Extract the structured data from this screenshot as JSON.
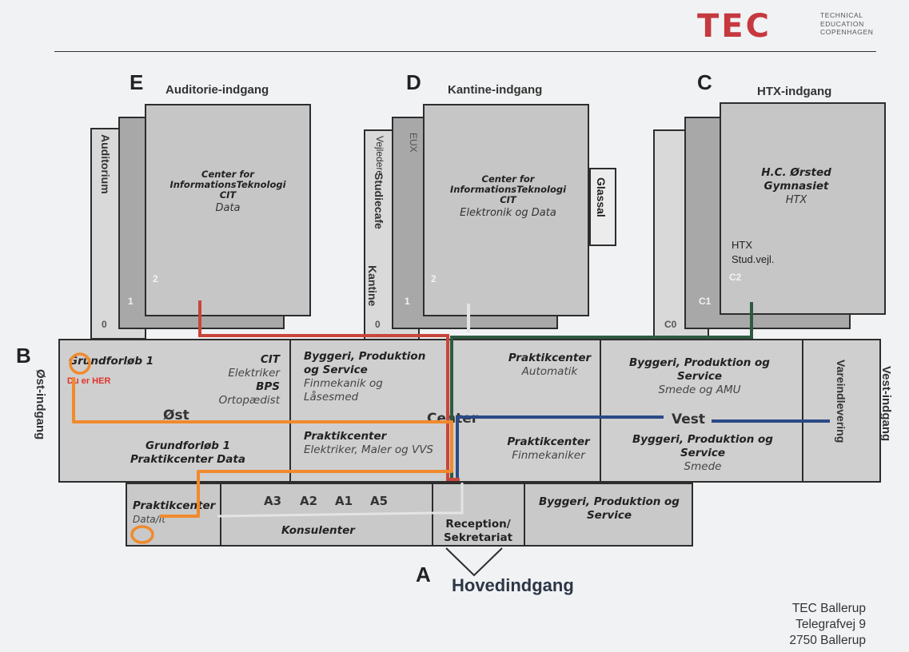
{
  "brand": {
    "logo_mark": "TEC",
    "logo_lines": [
      "TECHNICAL",
      "EDUCATION",
      "COPENHAGEN"
    ]
  },
  "entrances": {
    "E": {
      "letter": "E",
      "label": "Auditorie-indgang"
    },
    "D": {
      "letter": "D",
      "label": "Kantine-indgang"
    },
    "C": {
      "letter": "C",
      "label": "HTX-indgang"
    },
    "B": {
      "letter": "B",
      "label": "Øst-indgang"
    },
    "west": {
      "label": "Vest-indgang"
    },
    "A": {
      "letter": "A",
      "label": "Hovedindgang"
    }
  },
  "building_e": {
    "side_label": "Auditorium",
    "title": "Center for InformationsTeknologi",
    "abbr": "CIT",
    "sub": "Data",
    "floors": [
      "0",
      "1",
      "2"
    ]
  },
  "building_d": {
    "side_labels": [
      "Vejledere",
      "Studiecafe",
      "Kantine"
    ],
    "eux": "EUX",
    "title": "Center for InformationsTeknologi",
    "abbr": "CIT",
    "sub": "Elektronik og Data",
    "annex": "Glassal",
    "floors": [
      "0",
      "1",
      "2"
    ]
  },
  "building_c": {
    "title": "H.C. Ørsted Gymnasiet",
    "sub": "HTX",
    "notes": [
      "HTX",
      "Stud.vejl."
    ],
    "floors": [
      "C0",
      "C1",
      "C2"
    ]
  },
  "ground_floor": {
    "grundforlob": {
      "title": "Grundforløb 1",
      "cit": "CIT",
      "cit_sub": "Elektriker",
      "bps": "BPS",
      "bps_sub": "Ortopædist"
    },
    "byggeri_upper": {
      "title": "Byggeri, Produktion og Service",
      "sub": "Finmekanik og Låsesmed"
    },
    "praktik_auto": {
      "title": "Praktikcenter",
      "sub": "Automatik"
    },
    "byggeri_east": {
      "title": "Byggeri, Produktion og Service",
      "sub": "Smede og AMU"
    },
    "vareindlevering": "Vareindlevering",
    "grund_data": {
      "title": "Grundforløb 1",
      "sub": "Praktikcenter Data"
    },
    "praktik_el": {
      "title": "Praktikcenter",
      "sub": "Elektriker, Maler og VVS"
    },
    "praktik_fin": {
      "title": "Praktikcenter",
      "sub": "Finmekaniker"
    },
    "byggeri_smede": {
      "title": "Byggeri, Produktion og Service",
      "sub": "Smede"
    },
    "corridor_labels": {
      "ost": "Øst",
      "center": "Center",
      "vest": "Vest"
    }
  },
  "bottom_wing": {
    "praktik_it": {
      "title": "Praktikcenter",
      "sub": "Data/It"
    },
    "rooms": [
      "A3",
      "A2",
      "A1",
      "A5"
    ],
    "konsulenter": "Konsulenter",
    "reception": "Reception/ Sekretariat",
    "byggeri": "Byggeri, Produktion og Service"
  },
  "you_are_here": "Du er HER",
  "address": [
    "TEC Ballerup",
    "Telegrafvej 9",
    "2750  Ballerup"
  ],
  "colors": {
    "accent_red": "#c5393f",
    "route_orange": "#f08a2c",
    "route_red": "#c9463a",
    "route_green": "#2e5a40",
    "route_blue": "#2b4a86",
    "route_grey": "#e4e4e4"
  }
}
